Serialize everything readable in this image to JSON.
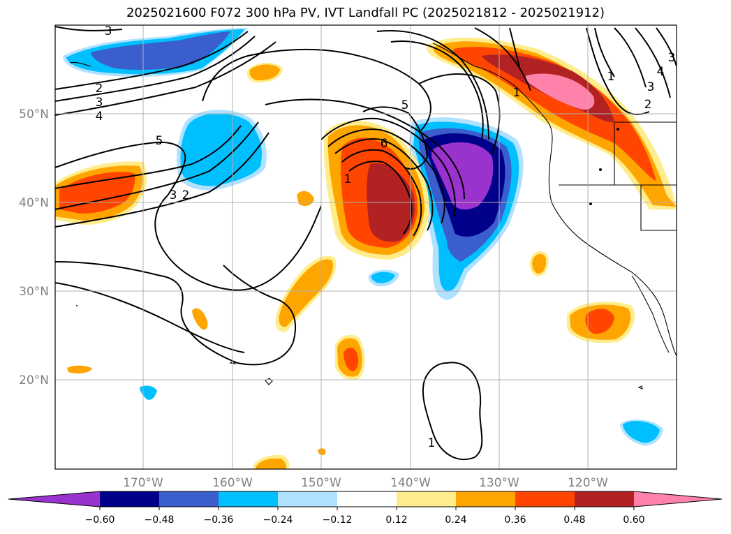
{
  "title": "2025021600 F072 300 hPa PV, IVT Landfall PC (2025021812 - 2025021912)",
  "lat_labels": [
    "50°N",
    "40°N",
    "30°N",
    "20°N"
  ],
  "lon_labels": [
    "170°W",
    "160°W",
    "150°W",
    "140°W",
    "130°W",
    "120°W"
  ],
  "contour_labels": [
    "3",
    "2",
    "3",
    "4",
    "5",
    "5",
    "6",
    "1",
    "3",
    "2",
    "1",
    "1",
    "3",
    "2",
    "4",
    "3",
    "1"
  ],
  "colorbar": {
    "ticks": [
      "−0.60",
      "−0.48",
      "−0.36",
      "−0.24",
      "−0.12",
      "0.12",
      "0.24",
      "0.36",
      "0.48",
      "0.60"
    ],
    "colors": [
      "#9a32cd",
      "#00008b",
      "#3a5fcd",
      "#00bfff",
      "#b0e2ff",
      "#ffffff",
      "#ffec8b",
      "#ffa500",
      "#ff4500",
      "#b22222",
      "#ff82ab"
    ]
  }
}
